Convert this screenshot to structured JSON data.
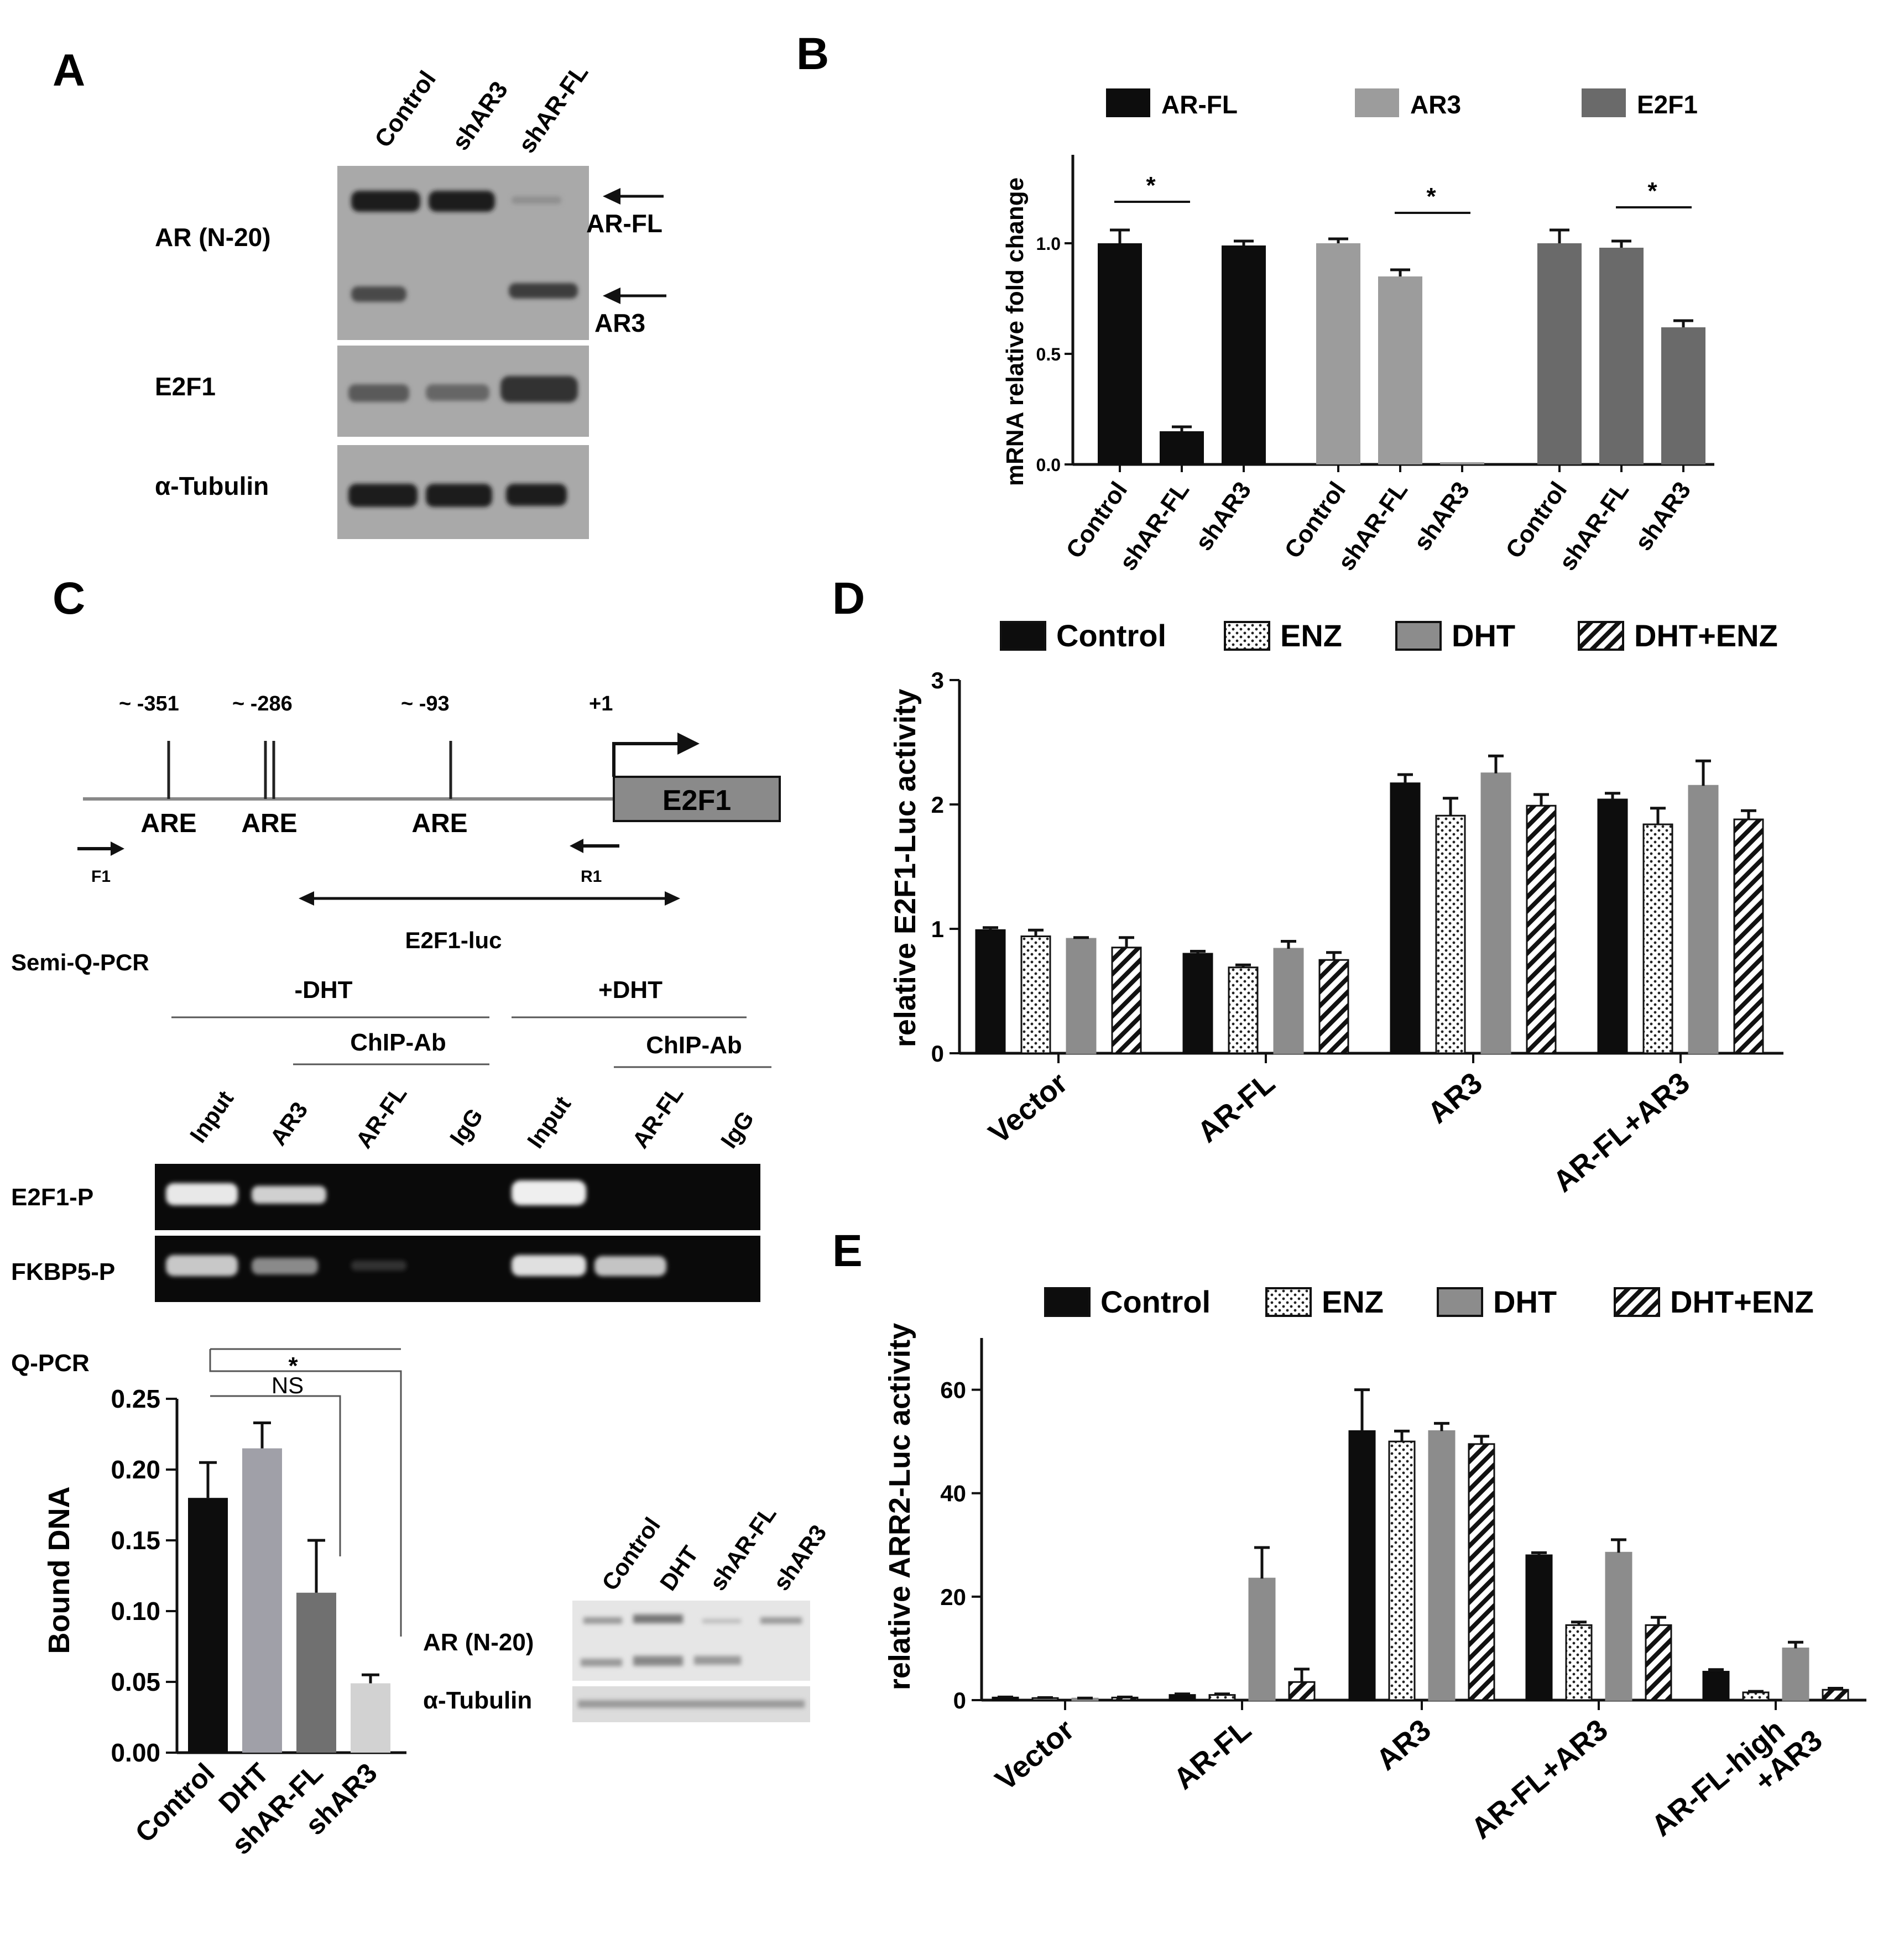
{
  "panels": {
    "A": {
      "letter": "A",
      "lanes": [
        "Control",
        "shAR3",
        "shAR-FL"
      ],
      "rows": [
        "AR (N-20)",
        "E2F1",
        "α-Tubulin"
      ],
      "arrows": [
        "AR-FL",
        "AR3"
      ]
    },
    "B": {
      "letter": "B"
    },
    "C": {
      "letter": "C",
      "positions": [
        "~ -351",
        "~ -286",
        "~ -93",
        "+1"
      ],
      "are_label": "ARE",
      "gene": "E2F1",
      "primer_f": "F1",
      "primer_r": "R1",
      "luc_label": "E2F1-luc",
      "semi_title": "Semi-Q-PCR",
      "minus_dht": "-DHT",
      "plus_dht": "+DHT",
      "chip_ab": "ChIP-Ab",
      "gel_lanes": [
        "Input",
        "AR3",
        "AR-FL",
        "IgG",
        "Input",
        "AR-FL",
        "IgG"
      ],
      "gel_rows": [
        "E2F1-P",
        "FKBP5-P"
      ],
      "qpcr_title": "Q-PCR",
      "ns": "NS",
      "star": "*",
      "inset_lanes": [
        "Control",
        "DHT",
        "shAR-FL",
        "shAR3"
      ],
      "inset_rows": [
        "AR (N-20)",
        "α-Tubulin"
      ]
    },
    "D": {
      "letter": "D"
    },
    "E": {
      "letter": "E"
    }
  },
  "chart_data": [
    {
      "id": "B",
      "type": "bar",
      "ylabel": "mRNA relative fold change",
      "ylim": [
        0,
        1.4
      ],
      "yticks": [
        "0.0",
        "0.5",
        "1.0"
      ],
      "groups": [
        {
          "name": "AR-FL",
          "color": "#0d0d0d",
          "categories": [
            "Control",
            "shAR-FL",
            "shAR3"
          ],
          "values": [
            1.0,
            0.15,
            0.99
          ],
          "errors": [
            0.06,
            0.02,
            0.02
          ]
        },
        {
          "name": "AR3",
          "color": "#9c9c9c",
          "categories": [
            "Control",
            "shAR-FL",
            "shAR3"
          ],
          "values": [
            1.0,
            0.85,
            0.01
          ],
          "errors": [
            0.02,
            0.03,
            0.0
          ]
        },
        {
          "name": "E2F1",
          "color": "#6a6a6a",
          "categories": [
            "Control",
            "shAR-FL",
            "shAR3"
          ],
          "values": [
            1.0,
            0.98,
            0.62
          ],
          "errors": [
            0.06,
            0.03,
            0.03
          ]
        }
      ],
      "significance": [
        "*",
        "*",
        "*"
      ]
    },
    {
      "id": "C-qpcr",
      "type": "bar",
      "ylabel": "Bound DNA",
      "ylim": [
        0,
        0.25
      ],
      "yticks": [
        "0.00",
        "0.05",
        "0.10",
        "0.15",
        "0.20",
        "0.25"
      ],
      "categories": [
        "Control",
        "DHT",
        "shAR-FL",
        "shAR3"
      ],
      "values": [
        0.18,
        0.215,
        0.113,
        0.049
      ],
      "errors": [
        0.025,
        0.018,
        0.037,
        0.006
      ],
      "colors": [
        "#0d0d0d",
        "#a0a0a8",
        "#707070",
        "#d2d2d2"
      ]
    },
    {
      "id": "D",
      "type": "bar",
      "ylabel": "relative E2F1-Luc activity",
      "ylim": [
        0,
        3
      ],
      "yticks": [
        "0",
        "1",
        "2",
        "3"
      ],
      "legend": [
        "Control",
        "ENZ",
        "DHT",
        "DHT+ENZ"
      ],
      "categories": [
        "Vector",
        "AR-FL",
        "AR3",
        "AR-FL+AR3"
      ],
      "series": [
        {
          "name": "Control",
          "values": [
            0.99,
            0.8,
            2.17,
            2.04
          ],
          "errors": [
            0.02,
            0.02,
            0.07,
            0.05
          ]
        },
        {
          "name": "ENZ",
          "values": [
            0.94,
            0.69,
            1.91,
            1.84
          ],
          "errors": [
            0.05,
            0.02,
            0.14,
            0.13
          ]
        },
        {
          "name": "DHT",
          "values": [
            0.92,
            0.84,
            2.25,
            2.15
          ],
          "errors": [
            0.01,
            0.06,
            0.14,
            0.2
          ]
        },
        {
          "name": "DHT+ENZ",
          "values": [
            0.85,
            0.75,
            1.99,
            1.88
          ],
          "errors": [
            0.08,
            0.06,
            0.09,
            0.07
          ]
        }
      ]
    },
    {
      "id": "E",
      "type": "bar",
      "ylabel": "relative ARR2-Luc activity",
      "ylim": [
        0,
        70
      ],
      "yticks": [
        "0",
        "20",
        "40",
        "60"
      ],
      "legend": [
        "Control",
        "ENZ",
        "DHT",
        "DHT+ENZ"
      ],
      "categories": [
        "Vector",
        "AR-FL",
        "AR3",
        "AR-FL+AR3",
        "AR-FL-high +AR3"
      ],
      "series": [
        {
          "name": "Control",
          "values": [
            0.5,
            1.0,
            52,
            28,
            5.5
          ],
          "errors": [
            0.1,
            0.2,
            8,
            0.5,
            0.4
          ]
        },
        {
          "name": "ENZ",
          "values": [
            0.4,
            1.0,
            50,
            14.5,
            1.5
          ],
          "errors": [
            0.1,
            0.2,
            2,
            0.6,
            0.2
          ]
        },
        {
          "name": "DHT",
          "values": [
            0.3,
            23.5,
            52,
            28.5,
            10
          ],
          "errors": [
            0.1,
            6,
            1.5,
            2.5,
            1.2
          ]
        },
        {
          "name": "DHT+ENZ",
          "values": [
            0.5,
            3.5,
            49.5,
            14.5,
            2
          ],
          "errors": [
            0.1,
            2.5,
            1.5,
            1.5,
            0.3
          ]
        }
      ]
    }
  ]
}
